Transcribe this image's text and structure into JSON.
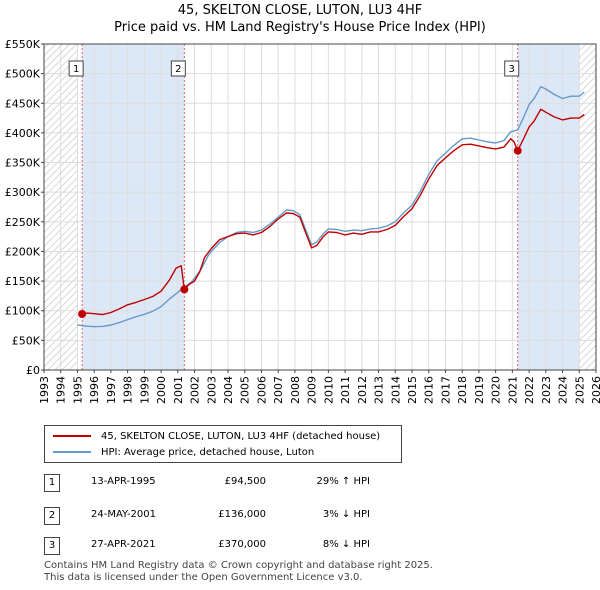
{
  "header": {
    "title_line1": "45, SKELTON CLOSE, LUTON, LU3 4HF",
    "title_line2": "Price paid vs. HM Land Registry's House Price Index (HPI)"
  },
  "chart_data": {
    "type": "line",
    "x_domain": [
      1993,
      2026
    ],
    "ylim": [
      0,
      550000
    ],
    "y_ticks": [
      0,
      50000,
      100000,
      150000,
      200000,
      250000,
      300000,
      350000,
      400000,
      450000,
      500000,
      550000
    ],
    "y_tick_labels": [
      "£0",
      "£50K",
      "£100K",
      "£150K",
      "£200K",
      "£250K",
      "£300K",
      "£350K",
      "£400K",
      "£450K",
      "£500K",
      "£550K"
    ],
    "x_tick_labels": [
      "1993",
      "1994",
      "1995",
      "1996",
      "1997",
      "1998",
      "1999",
      "2000",
      "2001",
      "2002",
      "2003",
      "2004",
      "2005",
      "2006",
      "2007",
      "2008",
      "2009",
      "2010",
      "2011",
      "2012",
      "2013",
      "2014",
      "2015",
      "2016",
      "2017",
      "2018",
      "2019",
      "2020",
      "2021",
      "2022",
      "2023",
      "2024",
      "2025",
      "2026"
    ],
    "grid": true,
    "hatched_ranges": [
      [
        1993,
        1995.0
      ],
      [
        2025.0,
        2026
      ]
    ],
    "shaded_periods": [
      [
        1995.28,
        2001.39
      ],
      [
        2021.32,
        2026
      ]
    ],
    "colors": {
      "property": "#c00000",
      "hpi": "#6699cc",
      "marker_line": "#dd6666",
      "shade": "#dde8f7"
    },
    "series": [
      {
        "name": "45, SKELTON CLOSE, LUTON, LU3 4HF (detached house)",
        "color": "#c00000",
        "points": [
          [
            1995.28,
            94500
          ],
          [
            1995.6,
            96000
          ],
          [
            1996.0,
            95000
          ],
          [
            1996.5,
            93500
          ],
          [
            1997.0,
            97000
          ],
          [
            1997.5,
            103000
          ],
          [
            1998.0,
            110000
          ],
          [
            1998.5,
            114000
          ],
          [
            1999.0,
            119000
          ],
          [
            1999.5,
            124000
          ],
          [
            2000.0,
            133000
          ],
          [
            2000.5,
            152000
          ],
          [
            2000.9,
            172000
          ],
          [
            2001.2,
            176000
          ],
          [
            2001.39,
            136000
          ],
          [
            2001.7,
            145000
          ],
          [
            2002.0,
            150000
          ],
          [
            2002.3,
            165000
          ],
          [
            2002.6,
            190000
          ],
          [
            2003.0,
            205000
          ],
          [
            2003.5,
            220000
          ],
          [
            2004.0,
            225000
          ],
          [
            2004.5,
            230000
          ],
          [
            2005.0,
            231000
          ],
          [
            2005.5,
            228000
          ],
          [
            2006.0,
            232000
          ],
          [
            2006.5,
            242000
          ],
          [
            2007.0,
            255000
          ],
          [
            2007.5,
            265000
          ],
          [
            2007.9,
            264000
          ],
          [
            2008.3,
            258000
          ],
          [
            2008.6,
            235000
          ],
          [
            2009.0,
            206000
          ],
          [
            2009.3,
            210000
          ],
          [
            2009.7,
            225000
          ],
          [
            2010.0,
            233000
          ],
          [
            2010.5,
            232000
          ],
          [
            2011.0,
            228000
          ],
          [
            2011.5,
            231000
          ],
          [
            2012.0,
            229000
          ],
          [
            2012.5,
            233000
          ],
          [
            2013.0,
            233000
          ],
          [
            2013.5,
            237000
          ],
          [
            2014.0,
            244000
          ],
          [
            2014.5,
            259000
          ],
          [
            2015.0,
            272000
          ],
          [
            2015.5,
            295000
          ],
          [
            2016.0,
            322000
          ],
          [
            2016.5,
            345000
          ],
          [
            2017.0,
            358000
          ],
          [
            2017.5,
            370000
          ],
          [
            2018.0,
            380000
          ],
          [
            2018.5,
            381000
          ],
          [
            2019.0,
            378000
          ],
          [
            2019.5,
            375000
          ],
          [
            2020.0,
            373000
          ],
          [
            2020.5,
            376000
          ],
          [
            2020.9,
            390000
          ],
          [
            2021.1,
            385000
          ],
          [
            2021.32,
            370000
          ],
          [
            2021.7,
            392000
          ],
          [
            2022.0,
            410000
          ],
          [
            2022.3,
            420000
          ],
          [
            2022.7,
            440000
          ],
          [
            2023.0,
            435000
          ],
          [
            2023.5,
            427000
          ],
          [
            2024.0,
            422000
          ],
          [
            2024.5,
            425000
          ],
          [
            2025.0,
            425000
          ],
          [
            2025.3,
            431000
          ]
        ]
      },
      {
        "name": "HPI: Average price, detached house, Luton",
        "color": "#6699cc",
        "points": [
          [
            1995.0,
            76000
          ],
          [
            1995.5,
            74000
          ],
          [
            1996.0,
            73000
          ],
          [
            1996.5,
            73500
          ],
          [
            1997.0,
            76000
          ],
          [
            1997.5,
            80000
          ],
          [
            1998.0,
            85000
          ],
          [
            1998.5,
            90000
          ],
          [
            1999.0,
            94000
          ],
          [
            1999.5,
            99000
          ],
          [
            2000.0,
            107000
          ],
          [
            2000.5,
            120000
          ],
          [
            2001.0,
            131000
          ],
          [
            2001.39,
            140000
          ],
          [
            2001.8,
            148000
          ],
          [
            2002.0,
            155000
          ],
          [
            2002.4,
            170000
          ],
          [
            2002.8,
            192000
          ],
          [
            2003.0,
            200000
          ],
          [
            2003.5,
            215000
          ],
          [
            2004.0,
            225000
          ],
          [
            2004.5,
            232000
          ],
          [
            2005.0,
            234000
          ],
          [
            2005.5,
            232000
          ],
          [
            2006.0,
            236000
          ],
          [
            2006.5,
            246000
          ],
          [
            2007.0,
            258000
          ],
          [
            2007.5,
            270000
          ],
          [
            2007.9,
            269000
          ],
          [
            2008.3,
            262000
          ],
          [
            2008.6,
            240000
          ],
          [
            2009.0,
            211000
          ],
          [
            2009.3,
            216000
          ],
          [
            2009.7,
            230000
          ],
          [
            2010.0,
            238000
          ],
          [
            2010.5,
            237000
          ],
          [
            2011.0,
            234000
          ],
          [
            2011.5,
            236000
          ],
          [
            2012.0,
            235000
          ],
          [
            2012.5,
            238000
          ],
          [
            2013.0,
            239000
          ],
          [
            2013.5,
            243000
          ],
          [
            2014.0,
            250000
          ],
          [
            2014.5,
            265000
          ],
          [
            2015.0,
            278000
          ],
          [
            2015.5,
            302000
          ],
          [
            2016.0,
            330000
          ],
          [
            2016.5,
            353000
          ],
          [
            2017.0,
            366000
          ],
          [
            2017.5,
            379000
          ],
          [
            2018.0,
            390000
          ],
          [
            2018.5,
            391000
          ],
          [
            2019.0,
            388000
          ],
          [
            2019.5,
            385000
          ],
          [
            2020.0,
            383000
          ],
          [
            2020.5,
            387000
          ],
          [
            2020.9,
            402000
          ],
          [
            2021.32,
            405000
          ],
          [
            2021.7,
            428000
          ],
          [
            2022.0,
            448000
          ],
          [
            2022.3,
            458000
          ],
          [
            2022.7,
            478000
          ],
          [
            2023.0,
            474000
          ],
          [
            2023.5,
            465000
          ],
          [
            2024.0,
            458000
          ],
          [
            2024.5,
            462000
          ],
          [
            2025.0,
            462000
          ],
          [
            2025.3,
            469000
          ]
        ]
      }
    ],
    "sales": [
      {
        "label": "1",
        "x": 1995.28,
        "price": 94500
      },
      {
        "label": "2",
        "x": 2001.39,
        "price": 136000
      },
      {
        "label": "3",
        "x": 2021.32,
        "price": 370000
      }
    ]
  },
  "legend": {
    "property_label": "45, SKELTON CLOSE, LUTON, LU3 4HF (detached house)",
    "hpi_label": "HPI: Average price, detached house, Luton"
  },
  "transactions": [
    {
      "badge": "1",
      "date": "13-APR-1995",
      "price": "£94,500",
      "hpi": "29% ↑ HPI"
    },
    {
      "badge": "2",
      "date": "24-MAY-2001",
      "price": "£136,000",
      "hpi": "3% ↓ HPI"
    },
    {
      "badge": "3",
      "date": "27-APR-2021",
      "price": "£370,000",
      "hpi": "8% ↓ HPI"
    }
  ],
  "footer": {
    "line1": "Contains HM Land Registry data © Crown copyright and database right 2025.",
    "line2": "This data is licensed under the Open Government Licence v3.0."
  }
}
